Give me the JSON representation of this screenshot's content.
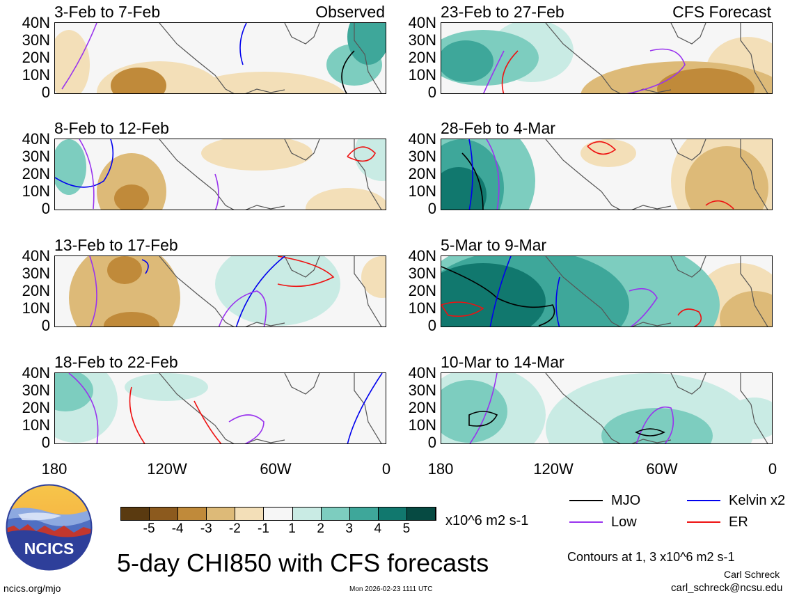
{
  "chart_data": {
    "type": "heatmap",
    "title": "5-day CHI850 with CFS forecasts",
    "variable": "CHI850",
    "units": "x10^6 m2 s-1",
    "contours_note": "Contours at 1, 3 x10^6 m2 s-1",
    "y_ticks": [
      "40N",
      "30N",
      "20N",
      "10N",
      "0"
    ],
    "x_ticks": [
      "180",
      "120W",
      "60W",
      "0"
    ],
    "colorbar_ticks": [
      "-5",
      "-4",
      "-3",
      "-2",
      "-1",
      "1",
      "2",
      "3",
      "4",
      "5"
    ],
    "colorbar_colors": [
      "#5a3a10",
      "#8c5a1e",
      "#c08a3a",
      "#ddba78",
      "#f3dfb8",
      "#f6f6f6",
      "#c9ebe4",
      "#7dcdbf",
      "#3ea79a",
      "#11786e",
      "#064a42"
    ],
    "legend": [
      {
        "label": "MJO",
        "color": "#000000"
      },
      {
        "label": "Kelvin x2",
        "color": "#0000ee"
      },
      {
        "label": "Low",
        "color": "#9933ee"
      },
      {
        "label": "ER",
        "color": "#ee1111"
      }
    ],
    "panels": [
      {
        "period": "3-Feb to 7-Feb",
        "tag": "Observed"
      },
      {
        "period": "23-Feb to 27-Feb",
        "tag": "CFS Forecast"
      },
      {
        "period": "8-Feb to 12-Feb",
        "tag": ""
      },
      {
        "period": "28-Feb to 4-Mar",
        "tag": ""
      },
      {
        "period": "13-Feb to 17-Feb",
        "tag": ""
      },
      {
        "period": "5-Mar to 9-Mar",
        "tag": ""
      },
      {
        "period": "18-Feb to 22-Feb",
        "tag": ""
      },
      {
        "period": "10-Mar to 14-Mar",
        "tag": ""
      }
    ]
  },
  "logo": {
    "text": "NCICS"
  },
  "footer": {
    "url": "ncics.org/mjo",
    "timestamp": "Mon 2026-02-23 1111 UTC",
    "author": "Carl Schreck",
    "email": "carl_schreck@ncsu.edu"
  }
}
